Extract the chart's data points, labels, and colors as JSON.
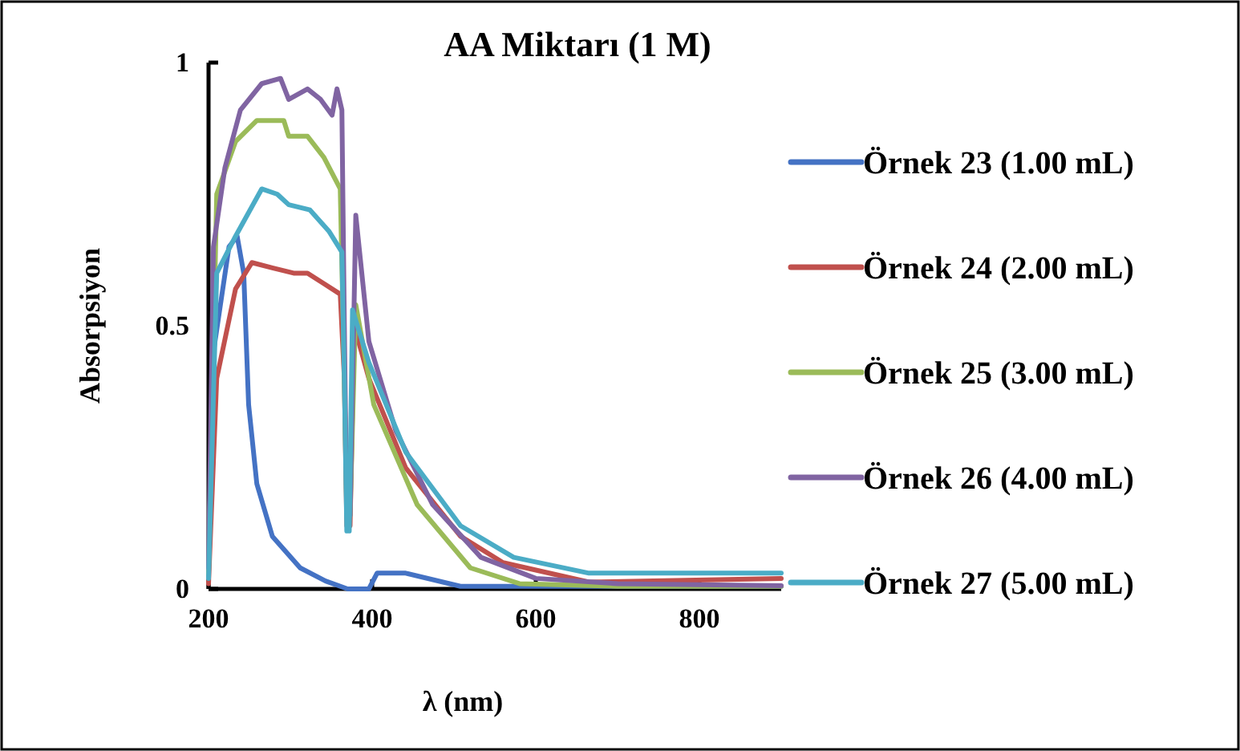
{
  "chart_data": {
    "type": "line",
    "title": "AA Miktarı (1 M)",
    "xlabel": "λ (nm)",
    "ylabel": "Absorpsiyon",
    "xlim": [
      200,
      900
    ],
    "xticks": [
      200,
      400,
      600,
      800
    ],
    "ylim": [
      0,
      1
    ],
    "yticks": [
      0,
      0.5,
      1
    ],
    "grid": false,
    "legend": "right",
    "marker": "none",
    "line_style": "solid",
    "series": [
      {
        "name": "Örnek 23 (1.00 mL)",
        "color": "#4472c4",
        "x": [
          200,
          206,
          225,
          235,
          243,
          249,
          259,
          278,
          312,
          343,
          370,
          396,
          406,
          441,
          508,
          600,
          700,
          900
        ],
        "values": [
          0.03,
          0.45,
          0.65,
          0.67,
          0.6,
          0.35,
          0.2,
          0.1,
          0.04,
          0.015,
          0,
          0,
          0.03,
          0.03,
          0.005,
          0.005,
          0.005,
          0.005
        ]
      },
      {
        "name": "Örnek 24 (2.00 mL)",
        "color": "#c0504d",
        "x": [
          200,
          210,
          233,
          253,
          278,
          304,
          321,
          341,
          361,
          366,
          369,
          373,
          378,
          396,
          441,
          508,
          560,
          665,
          900
        ],
        "values": [
          0.01,
          0.4,
          0.57,
          0.62,
          0.61,
          0.6,
          0.6,
          0.58,
          0.56,
          0.4,
          0.12,
          0.12,
          0.5,
          0.4,
          0.23,
          0.1,
          0.05,
          0.013,
          0.02
        ]
      },
      {
        "name": "Örnek 25 (3.00 mL)",
        "color": "#9bbb59",
        "x": [
          200,
          210,
          233,
          259,
          292,
          298,
          321,
          341,
          361,
          366,
          369,
          373,
          380,
          402,
          455,
          520,
          580,
          700,
          900
        ],
        "values": [
          0.03,
          0.75,
          0.85,
          0.89,
          0.89,
          0.86,
          0.86,
          0.82,
          0.76,
          0.4,
          0.14,
          0.14,
          0.54,
          0.35,
          0.16,
          0.04,
          0.01,
          0.005,
          0.005
        ]
      },
      {
        "name": "Örnek 26 (4.00 mL)",
        "color": "#8064a2",
        "x": [
          200,
          206,
          220,
          239,
          265,
          288,
          298,
          321,
          337,
          351,
          357,
          363,
          366,
          369,
          373,
          380,
          396,
          429,
          474,
          533,
          600,
          700,
          900
        ],
        "values": [
          0.04,
          0.65,
          0.8,
          0.91,
          0.96,
          0.97,
          0.93,
          0.95,
          0.93,
          0.9,
          0.95,
          0.91,
          0.5,
          0.14,
          0.14,
          0.71,
          0.47,
          0.3,
          0.16,
          0.06,
          0.02,
          0.01,
          0.006
        ]
      },
      {
        "name": "Örnek 27 (5.00 mL)",
        "color": "#4bacc6",
        "x": [
          200,
          210,
          233,
          265,
          284,
          298,
          324,
          347,
          363,
          366,
          369,
          372,
          376,
          396,
          441,
          508,
          573,
          665,
          900
        ],
        "values": [
          0.02,
          0.6,
          0.67,
          0.76,
          0.75,
          0.73,
          0.72,
          0.68,
          0.64,
          0.4,
          0.11,
          0.11,
          0.53,
          0.43,
          0.26,
          0.12,
          0.06,
          0.03,
          0.03
        ]
      }
    ]
  }
}
